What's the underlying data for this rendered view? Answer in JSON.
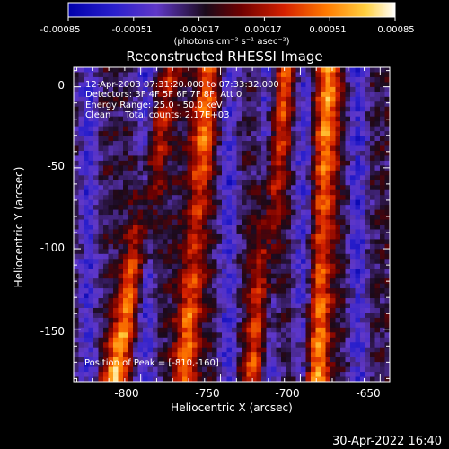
{
  "colorbar": {
    "ticks": [
      "-0.00085",
      "-0.00051",
      "-0.00017",
      "0.00017",
      "0.00051",
      "0.00085"
    ],
    "units": "(photons cm⁻² s⁻¹ asec⁻²)",
    "min": -0.00085,
    "max": 0.00085
  },
  "title": "Reconstructed RHESSI Image",
  "info": {
    "time_range": "12-Apr-2003 07:31:20.000 to 07:33:32.000",
    "detectors": "Detectors: 3F 4F 5F 6F 7F 8F, Att 0",
    "energy": "Energy Range: 25.0 - 50.0 keV",
    "clean": "Clean     Total counts: 2.17E+03",
    "peak": "Position of Peak = [-810,-160]"
  },
  "axes": {
    "xlabel": "Heliocentric X (arcsec)",
    "ylabel": "Heliocentric Y (arcsec)",
    "xticks": [
      "-800",
      "-750",
      "-700",
      "-650"
    ],
    "yticks": [
      "0",
      "-50",
      "-100",
      "-150"
    ],
    "xlim": [
      -842,
      -644
    ],
    "ylim": [
      -182,
      12
    ]
  },
  "footer": {
    "date": "30-Apr-2022 16:40"
  },
  "colors": {
    "colormap_stops": [
      "#0000aa",
      "#3a2fd8",
      "#6a3acc",
      "#1a0a1a",
      "#7a0000",
      "#d42000",
      "#ff7a00",
      "#ffd040",
      "#ffffff"
    ]
  },
  "chart_data": {
    "type": "heatmap",
    "title": "Reconstructed RHESSI Image",
    "xlabel": "Heliocentric X (arcsec)",
    "ylabel": "Heliocentric Y (arcsec)",
    "xlim": [
      -842,
      -644
    ],
    "ylim": [
      -182,
      12
    ],
    "color_range": [
      -0.00085,
      0.00085
    ],
    "bright_stripes": [
      {
        "x_top": -781,
        "x_bottom": -817,
        "peak": 0.00085
      },
      {
        "x_top": -757,
        "x_bottom": -773,
        "peak": 0.00065
      },
      {
        "x_top": -709,
        "x_bottom": -730,
        "peak": 0.00055
      },
      {
        "x_top": -682,
        "x_bottom": -690,
        "peak": 0.00075
      }
    ],
    "peak_position": [
      -810,
      -160
    ]
  }
}
